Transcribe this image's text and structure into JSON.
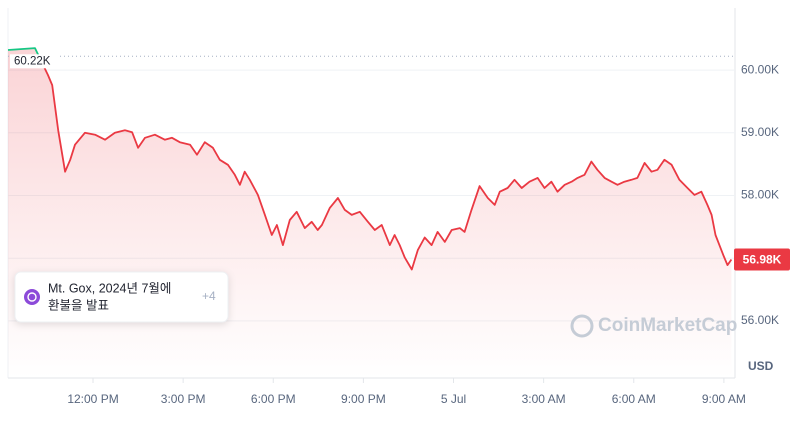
{
  "chart_data": {
    "type": "line",
    "x": [
      9.17,
      10.07,
      10.5,
      10.64,
      10.84,
      11.07,
      11.24,
      11.4,
      11.73,
      12.07,
      12.4,
      12.73,
      13.06,
      13.3,
      13.5,
      13.73,
      14.06,
      14.39,
      14.63,
      14.89,
      15.23,
      15.46,
      15.72,
      15.99,
      16.22,
      16.49,
      16.72,
      16.89,
      17.05,
      17.22,
      17.49,
      17.72,
      17.95,
      18.12,
      18.32,
      18.55,
      18.78,
      19.05,
      19.28,
      19.48,
      19.62,
      19.88,
      20.15,
      20.38,
      20.61,
      20.88,
      21.15,
      21.38,
      21.61,
      21.88,
      22.04,
      22.21,
      22.38,
      22.61,
      22.81,
      23.04,
      23.27,
      23.47,
      23.71,
      23.94,
      24.21,
      24.37,
      24.6,
      24.87,
      25.14,
      25.37,
      25.54,
      25.8,
      26.03,
      26.27,
      26.53,
      26.8,
      27.03,
      27.26,
      27.46,
      27.7,
      27.93,
      28.13,
      28.36,
      28.59,
      28.79,
      29.03,
      29.26,
      29.46,
      29.69,
      29.92,
      30.12,
      30.36,
      30.59,
      30.79,
      31.02,
      31.26,
      31.52,
      31.79,
      32.02,
      32.25,
      32.45,
      32.59,
      32.72,
      32.85,
      32.98,
      33.12,
      33.25
    ],
    "values": [
      60320,
      60350,
      59920,
      59760,
      59040,
      58380,
      58570,
      58810,
      59000,
      58970,
      58890,
      59000,
      59040,
      59010,
      58760,
      58920,
      58970,
      58890,
      58920,
      58850,
      58810,
      58650,
      58850,
      58760,
      58570,
      58490,
      58330,
      58170,
      58380,
      58250,
      58010,
      57690,
      57370,
      57530,
      57210,
      57610,
      57740,
      57480,
      57580,
      57450,
      57530,
      57800,
      57960,
      57770,
      57690,
      57740,
      57580,
      57450,
      57530,
      57210,
      57370,
      57210,
      57010,
      56820,
      57130,
      57330,
      57210,
      57420,
      57260,
      57450,
      57480,
      57420,
      57770,
      58150,
      57960,
      57850,
      58060,
      58120,
      58250,
      58120,
      58220,
      58280,
      58120,
      58220,
      58060,
      58170,
      58220,
      58280,
      58330,
      58540,
      58410,
      58280,
      58220,
      58170,
      58220,
      58250,
      58280,
      58520,
      58380,
      58410,
      58570,
      58490,
      58250,
      58120,
      58010,
      58060,
      57850,
      57690,
      57370,
      57210,
      57050,
      56890,
      56980
    ],
    "color": "#ea3943",
    "color_above": "#16c784",
    "xlim": [
      9.17,
      33.37
    ],
    "ylim": [
      55090,
      60990
    ],
    "xticks": [
      {
        "value": 12,
        "label": "12:00 PM"
      },
      {
        "value": 15,
        "label": "3:00 PM"
      },
      {
        "value": 18,
        "label": "6:00 PM"
      },
      {
        "value": 21,
        "label": "9:00 PM"
      },
      {
        "value": 24,
        "label": "5 Jul"
      },
      {
        "value": 27,
        "label": "3:00 AM"
      },
      {
        "value": 30,
        "label": "6:00 AM"
      },
      {
        "value": 33,
        "label": "9:00 AM"
      }
    ],
    "yticks": [
      {
        "value": 56000,
        "label": "56.00K"
      },
      {
        "value": 57000,
        "label": "57.00K"
      },
      {
        "value": 58000,
        "label": "58.00K"
      },
      {
        "value": 59000,
        "label": "59.00K"
      },
      {
        "value": 60000,
        "label": "60.00K"
      }
    ],
    "grid": true,
    "reference_line": {
      "value": 60220,
      "label": "60.22K"
    },
    "last_price": {
      "value": 56980,
      "label": "56.98K"
    },
    "unit": "USD",
    "watermark": "CoinMarketCap",
    "event": {
      "lines": [
        "Mt. Gox, 2024년 7월에",
        "환불을 발표"
      ],
      "more": "+4"
    }
  }
}
